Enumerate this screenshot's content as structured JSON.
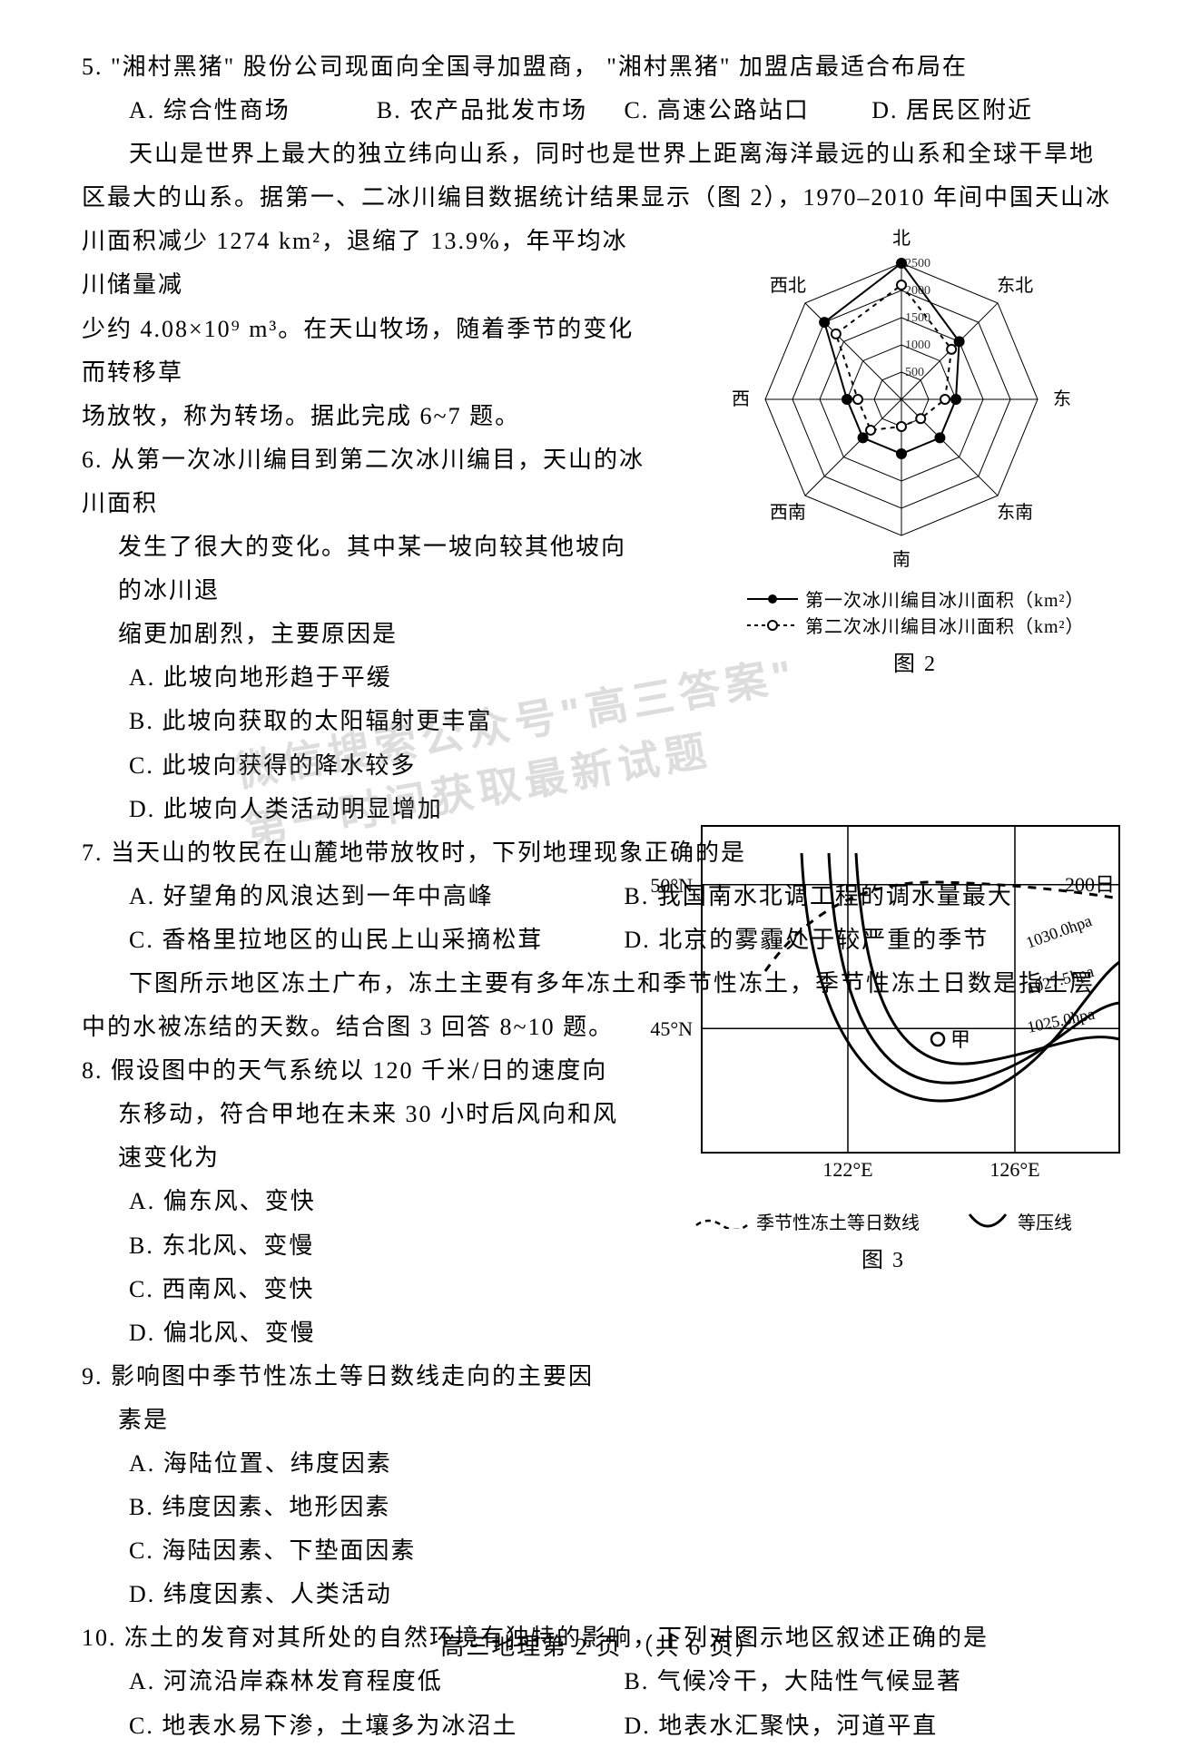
{
  "q5": {
    "stem": "5.  \"湘村黑猪\" 股份公司现面向全国寻加盟商， \"湘村黑猪\" 加盟店最适合布局在",
    "opts": {
      "A": "A. 综合性商场",
      "B": "B. 农产品批发市场",
      "C": "C. 高速公路站口",
      "D": "D. 居民区附近"
    }
  },
  "passage67": {
    "l1": "天山是世界上最大的独立纬向山系，同时也是世界上距离海洋最远的山系和全球干旱地",
    "l2": "区最大的山系。据第一、二冰川编目数据统计结果显示（图 2），1970–2010 年间中国天山冰",
    "l3": "川面积减少 1274 km²，退缩了 13.9%，年平均冰川储量减",
    "l4": "少约 4.08×10⁹ m³。在天山牧场，随着季节的变化而转移草",
    "l5": "场放牧，称为转场。据此完成 6~7 题。"
  },
  "q6": {
    "l1": "6. 从第一次冰川编目到第二次冰川编目，天山的冰川面积",
    "l2": "发生了很大的变化。其中某一坡向较其他坡向的冰川退",
    "l3": "缩更加剧烈，主要原因是",
    "A": "A. 此坡向地形趋于平缓",
    "B": "B. 此坡向获取的太阳辐射更丰富",
    "C": "C. 此坡向获得的降水较多",
    "D": "D. 此坡向人类活动明显增加"
  },
  "q7": {
    "stem": "7. 当天山的牧民在山麓地带放牧时，下列地理现象正确的是",
    "A": "A. 好望角的风浪达到一年中高峰",
    "B": "B. 我国南水北调工程的调水量最大",
    "C": "C. 香格里拉地区的山民上山采摘松茸",
    "D": "D. 北京的雾霾处于较严重的季节"
  },
  "passage810": {
    "l1": "下图所示地区冻土广布，冻土主要有多年冻土和季节性冻土，季节性冻土日数是指土层",
    "l2": "中的水被冻结的天数。结合图 3 回答 8~10 题。"
  },
  "q8": {
    "l1": "8. 假设图中的天气系统以 120 千米/日的速度向",
    "l2": "东移动，符合甲地在未来 30 小时后风向和风",
    "l3": "速变化为",
    "A": "A. 偏东风、变快",
    "B": "B. 东北风、变慢",
    "C": "C. 西南风、变快",
    "D": "D. 偏北风、变慢"
  },
  "q9": {
    "l1": "9. 影响图中季节性冻土等日数线走向的主要因",
    "l2": "素是",
    "A": "A. 海陆位置、纬度因素",
    "B": "B. 纬度因素、地形因素",
    "C": "C. 海陆因素、下垫面因素",
    "D": "D. 纬度因素、人类活动"
  },
  "q10": {
    "stem": "10. 冻土的发育对其所处的自然环境有独特的影响，下列对图示地区叙述正确的是",
    "A": "A. 河流沿岸森林发育程度低",
    "B": "B. 气候冷干，大陆性气候显著",
    "C": "C. 地表水易下渗，土壤多为冰沼土",
    "D": "D. 地表水汇聚快，河道平直"
  },
  "fig2": {
    "caption": "图 2",
    "directions": [
      "北",
      "东北",
      "东",
      "东南",
      "南",
      "西南",
      "西",
      "西北"
    ],
    "rings": [
      500,
      1000,
      1500,
      2000,
      2500
    ],
    "series1": {
      "label": "第一次冰川编目冰川面积（km²）",
      "values": [
        2500,
        1500,
        1000,
        1000,
        1000,
        1000,
        1000,
        2000
      ],
      "color": "#000000",
      "marker": "filled",
      "line": "solid"
    },
    "series2": {
      "label": "第二次冰川编目冰川面积（km²）",
      "values": [
        2100,
        1300,
        800,
        500,
        500,
        800,
        800,
        1700
      ],
      "color": "#000000",
      "marker": "open",
      "line": "dashed"
    },
    "max": 2500
  },
  "fig3": {
    "caption": "图 3",
    "lat_labels": [
      "50°N",
      "45°N"
    ],
    "lon_labels": [
      "122°E",
      "126°E"
    ],
    "day_label": "200日",
    "isobar_labels": [
      "1030.0hpa",
      "1027.5hpa",
      "1025.0hpa"
    ],
    "point_label": "甲",
    "legend": {
      "dashed": "季节性冻土等日数线",
      "solid": "等压线"
    }
  },
  "footer": "高三地理第 2 页 （共 6 页）",
  "watermark": "微信公众号\"高三答案\"\n第一时间获取最新试题"
}
